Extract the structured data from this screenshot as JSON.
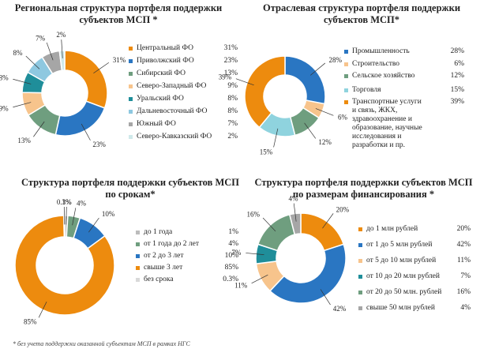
{
  "footnote": "* без учета поддержки оказанной субъектам МСП в рамках НГС",
  "chart_data": [
    {
      "type": "pie",
      "title": "Региональная структура портфеля поддержки субъектов МСП *",
      "categories": [
        "Центральный ФО",
        "Приволжский ФО",
        "Сибирский ФО",
        "Северо-Западный ФО",
        "Уральский ФО",
        "Дальневосточный ФО",
        "Южный ФО",
        "Северо-Кавказский ФО"
      ],
      "values": [
        31,
        23,
        13,
        9,
        8,
        8,
        7,
        2
      ],
      "value_labels": [
        "31%",
        "23%",
        "13%",
        "9%",
        "8%",
        "8%",
        "7%",
        "2%"
      ],
      "colors": [
        "#ed8b0e",
        "#2a76c2",
        "#6f9e7f",
        "#f7c48c",
        "#1f8e9a",
        "#8ec8e0",
        "#a6a6a6",
        "#cfe9ea"
      ],
      "legend": "right"
    },
    {
      "type": "pie",
      "title": "Отраслевая структура портфеля поддержки субъектов МСП*",
      "categories": [
        "Промышленность",
        "Строительство",
        "Сельское хозяйство",
        "Торговля",
        "Транспортные услуги и связь, ЖКХ, здравоохранение и образование, научные исследования и разработки и пр."
      ],
      "values": [
        28,
        6,
        12,
        15,
        39
      ],
      "value_labels": [
        "28%",
        "6%",
        "12%",
        "15%",
        "39%"
      ],
      "colors": [
        "#2a76c2",
        "#f7c48c",
        "#6f9e7f",
        "#8fd3de",
        "#ed8b0e"
      ],
      "legend": "right"
    },
    {
      "type": "pie",
      "title": "Структура портфеля поддержки субъектов МСП по срокам*",
      "categories": [
        "до 1 года",
        "от 1 года до 2 лет",
        "от 2 до 3 лет",
        "свыше 3 лет",
        "без срока"
      ],
      "values": [
        1,
        4,
        10,
        85,
        0.3
      ],
      "value_labels": [
        "1%",
        "4%",
        "10%",
        "85%",
        "0.3%"
      ],
      "colors": [
        "#bcbcbc",
        "#6f9e7f",
        "#2a76c2",
        "#ed8b0e",
        "#d9d9d9"
      ],
      "legend": "right"
    },
    {
      "type": "pie",
      "title": "Структура портфеля поддержки субъектов МСП по размерам финансирования *",
      "categories": [
        "до 1 млн рублей",
        "от 1 до 5 млн рублей",
        "от 5 до 10 млн рублей",
        "от 10 до 20 млн рублей",
        "от 20 до 50 млн. рублей",
        "свыше 50 млн рублей"
      ],
      "values": [
        20,
        42,
        11,
        7,
        16,
        4
      ],
      "value_labels": [
        "20%",
        "42%",
        "11%",
        "7%",
        "16%",
        "4%"
      ],
      "colors": [
        "#ed8b0e",
        "#2a76c2",
        "#f7c48c",
        "#1f8e9a",
        "#6f9e7f",
        "#a6a6a6"
      ],
      "legend": "right"
    }
  ]
}
